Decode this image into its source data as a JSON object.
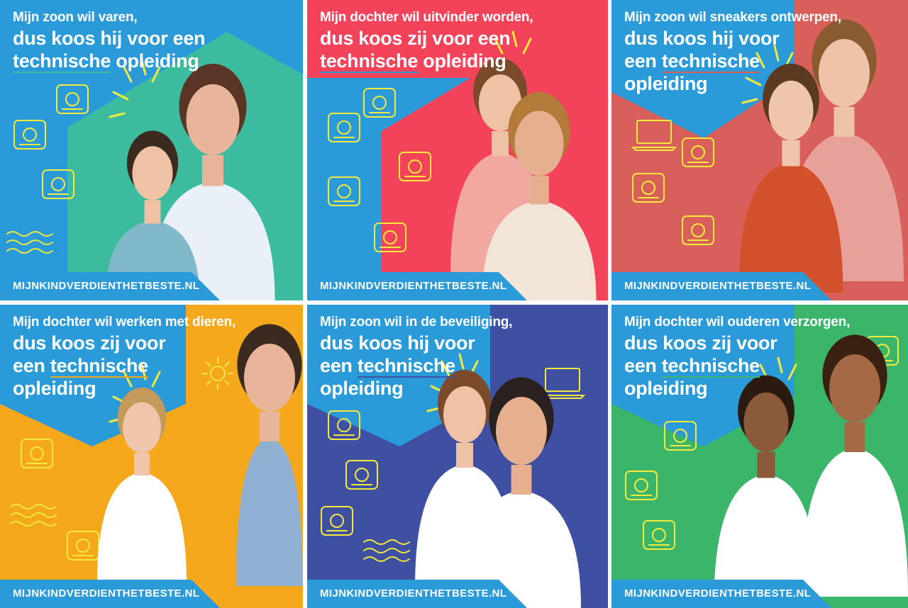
{
  "footer_label": "MIJNKINDVERDIENTHETBESTE.NL",
  "colors": {
    "blue": "#2a9bd8",
    "teal": "#3dbb9f",
    "red": "#f2435a",
    "salmon": "#d9605a",
    "orange": "#f5a81c",
    "navy": "#3f4fa1",
    "green": "#3bb56a",
    "icon_yellow": "#f3ea3c"
  },
  "tiles": [
    {
      "line1": "Mijn zoon wil varen,",
      "big": [
        [
          {
            "t": "dus koos hij voor een"
          }
        ],
        [
          {
            "t": "technische",
            "u": true
          },
          {
            "t": " opleiding"
          }
        ]
      ],
      "icons": [
        "airplane-icon",
        "city-skyline-icon",
        "ship-icon",
        "waves-icon"
      ]
    },
    {
      "line1": "Mijn dochter wil uitvinder worden,",
      "big": [
        [
          {
            "t": "dus koos zij voor een"
          }
        ],
        [
          {
            "t": "technische",
            "u": true
          },
          {
            "t": " opleiding"
          }
        ]
      ],
      "icons": [
        "planet-icon",
        "robot-arm-icon",
        "chip-icon",
        "ar-phone-icon",
        "vr-headset-icon"
      ]
    },
    {
      "line1": "Mijn zoon wil sneakers ontwerpen,",
      "big": [
        [
          {
            "t": "dus koos hij voor"
          }
        ],
        [
          {
            "t": "een "
          },
          {
            "t": "technische",
            "u": true
          }
        ],
        [
          {
            "t": "opleiding"
          }
        ]
      ],
      "icons": [
        "laptop-icon",
        "3d-printer-icon",
        "sneaker-icon",
        "globe-box-icon"
      ]
    },
    {
      "line1": "Mijn dochter wil werken met dieren,",
      "big": [
        [
          {
            "t": "dus koos zij voor"
          }
        ],
        [
          {
            "t": "een "
          },
          {
            "t": "technische",
            "u": true
          }
        ],
        [
          {
            "t": "opleiding"
          }
        ]
      ],
      "icons": [
        "sun-icon",
        "barn-icon",
        "waves-icon",
        "wheat-icon"
      ]
    },
    {
      "line1": "Mijn zoon wil in de beveiliging,",
      "big": [
        [
          {
            "t": "dus koos hij voor"
          }
        ],
        [
          {
            "t": "een "
          },
          {
            "t": "technische",
            "u": true
          }
        ],
        [
          {
            "t": "opleiding"
          }
        ]
      ],
      "icons": [
        "laptop-icon",
        "security-camera-icon",
        "lock-circuit-icon",
        "wind-turbine-icon",
        "waves-icon"
      ]
    },
    {
      "line1": "Mijn dochter wil ouderen verzorgen,",
      "big": [
        [
          {
            "t": "dus koos zij voor"
          }
        ],
        [
          {
            "t": "een "
          },
          {
            "t": "technische",
            "u": true
          }
        ],
        [
          {
            "t": "opleiding"
          }
        ]
      ],
      "icons": [
        "heart-monitor-icon",
        "ecg-monitor-icon",
        "wheelchair-icon",
        "mri-scanner-icon"
      ]
    }
  ]
}
